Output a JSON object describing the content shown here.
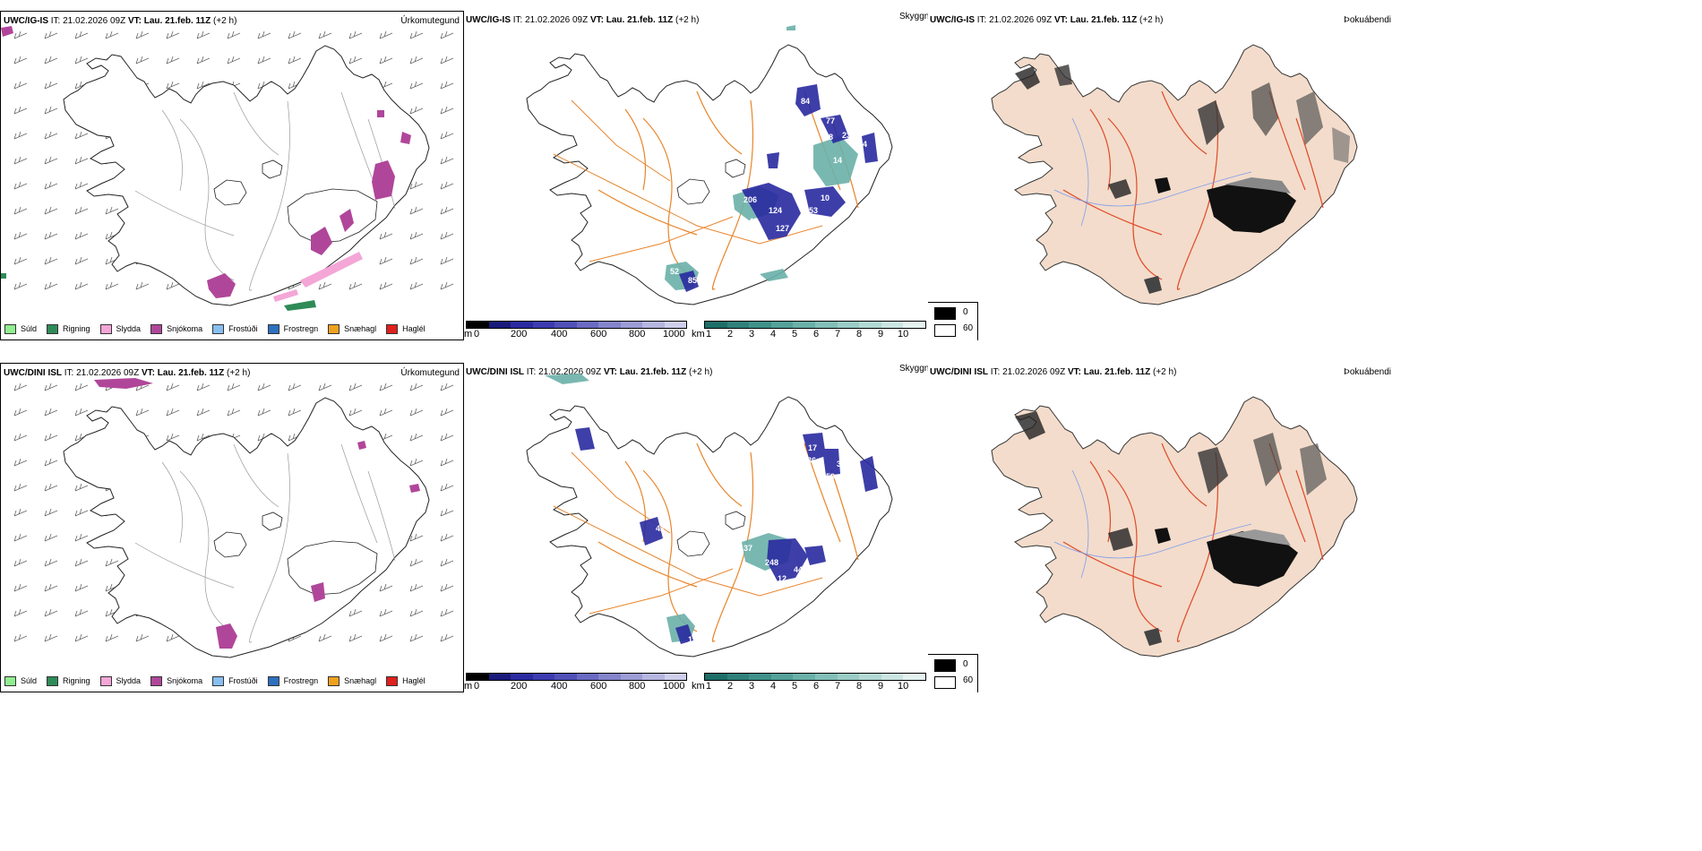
{
  "rows": [
    {
      "model": "UWC/IG-IS",
      "it_label": "IT:",
      "it_value": "21.02.2026 09Z",
      "vt_label": "VT:",
      "vt_value": "Lau. 21.feb. 11Z",
      "lead": "(+2 h)",
      "precip_values": [
        "84",
        "77",
        "75",
        "37",
        "18",
        "23",
        "44",
        "14",
        "10",
        "206",
        "124",
        "153",
        "41",
        "127",
        "30",
        "52",
        "85"
      ]
    },
    {
      "model": "UWC/DINI ISL",
      "it_label": "IT:",
      "it_value": "21.02.2026 09Z",
      "vt_label": "VT:",
      "vt_value": "Lau. 21.feb. 11Z",
      "lead": "(+2 h)",
      "precip_values": [
        "17",
        "136",
        "35",
        "59",
        "17",
        "42",
        "40",
        "37",
        "248",
        "44",
        "12",
        "85",
        "11"
      ]
    }
  ],
  "panel_titles": {
    "precip_type": "Úrkomutegund",
    "visibility": "Skyggni",
    "fog": "Þokuábendi"
  },
  "precip_legend": [
    {
      "label": "Súld",
      "color": "#90ee90"
    },
    {
      "label": "Rigning",
      "color": "#2e8b57"
    },
    {
      "label": "Slydda",
      "color": "#f4a6d7"
    },
    {
      "label": "Snjókoma",
      "color": "#b0469a"
    },
    {
      "label": "Frostúði",
      "color": "#87bff0"
    },
    {
      "label": "Frostregn",
      "color": "#2f6fc0"
    },
    {
      "label": "Snæhagl",
      "color": "#f0a020"
    },
    {
      "label": "Haglél",
      "color": "#e0201c"
    }
  ],
  "cloud_base_scale": {
    "unit": "m",
    "ticks": [
      "0",
      "200",
      "400",
      "600",
      "800",
      "1000"
    ],
    "colors": [
      "#000000",
      "#1a1a7a",
      "#2a2aa0",
      "#3c3cb0",
      "#5050b8",
      "#6a6ac2",
      "#8484cc",
      "#9c9cd6",
      "#b6b6e0",
      "#cfcfec"
    ]
  },
  "visibility_scale": {
    "unit": "km",
    "ticks": [
      "1",
      "2",
      "3",
      "4",
      "5",
      "6",
      "7",
      "8",
      "9",
      "10"
    ],
    "colors": [
      "#1d6e68",
      "#2f807a",
      "#3f918a",
      "#53a19a",
      "#6ab0a9",
      "#82bfb8",
      "#9accc6",
      "#b2d9d4",
      "#cae5e2",
      "#e4f2f0"
    ]
  },
  "fog_legend": {
    "high": "0",
    "low": "60"
  }
}
